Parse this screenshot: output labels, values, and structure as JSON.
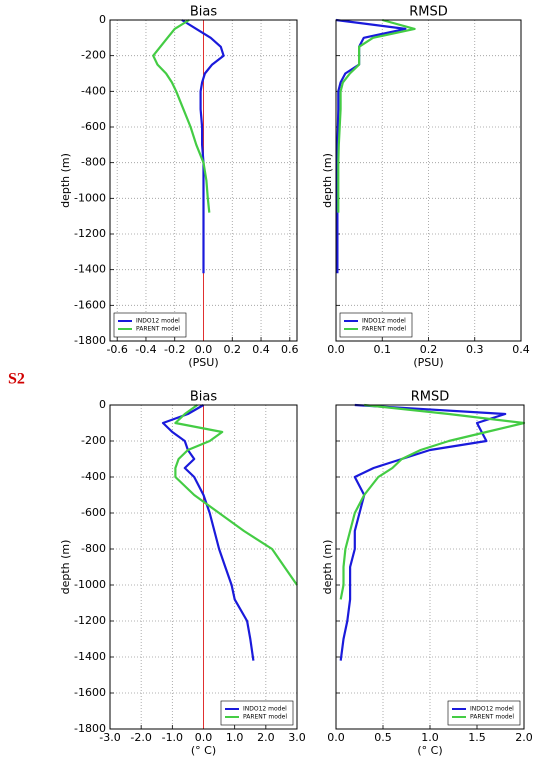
{
  "panel_label": "S2",
  "chart_data": [
    {
      "type": "line",
      "title": "Bias",
      "xlabel": "(PSU)",
      "ylabel": "depth (m)",
      "xlim": [
        -0.65,
        0.65
      ],
      "xticks": [
        -0.6,
        -0.4,
        -0.2,
        {
          "value": 0,
          "label": "0.0"
        },
        0.2,
        0.4,
        0.6
      ],
      "ylim": [
        -1800,
        0
      ],
      "yticks": [
        0,
        -200,
        -400,
        -600,
        -800,
        -1000,
        -1200,
        -1400,
        -1600,
        -1800
      ],
      "grid": true,
      "legend_loc": "lower left",
      "vline": 0,
      "vline_color": "#e03030",
      "y": [
        0,
        -50,
        -100,
        -150,
        -200,
        -250,
        -300,
        -350,
        -400,
        -500,
        -600,
        -700,
        -800,
        -900,
        -1000,
        -1080,
        -1200,
        -1300,
        -1420
      ],
      "series": [
        {
          "name": "INDO12 model",
          "color": "#1a1adb",
          "values": [
            -0.15,
            -0.05,
            0.05,
            0.12,
            0.14,
            0.06,
            0.01,
            -0.01,
            -0.02,
            -0.02,
            -0.01,
            -0.01,
            0.0,
            0.0,
            0.0,
            0.0,
            0.0,
            0.0,
            0.0
          ]
        },
        {
          "name": "PARENT model",
          "color": "#44cc44",
          "values": [
            -0.1,
            -0.2,
            -0.25,
            -0.3,
            -0.35,
            -0.32,
            -0.26,
            -0.22,
            -0.19,
            -0.14,
            -0.09,
            -0.05,
            0.0,
            0.02,
            0.03,
            0.04,
            null,
            null,
            null
          ]
        }
      ]
    },
    {
      "type": "line",
      "title": "RMSD",
      "xlabel": "(PSU)",
      "ylabel": "depth (m)",
      "xlim": [
        0,
        0.4
      ],
      "xticks": [
        {
          "value": 0,
          "label": "0.0"
        },
        0.1,
        0.2,
        0.3,
        0.4
      ],
      "ylim": [
        -1800,
        0
      ],
      "yticks": [
        0,
        -200,
        -400,
        -600,
        -800,
        -1000,
        -1200,
        -1400,
        -1600,
        -1800
      ],
      "grid": true,
      "legend_loc": "lower left",
      "y": [
        0,
        -50,
        -100,
        -150,
        -200,
        -250,
        -300,
        -350,
        -400,
        -500,
        -600,
        -700,
        -800,
        -900,
        -1000,
        -1080,
        -1200,
        -1300,
        -1420
      ],
      "series": [
        {
          "name": "INDO12 model",
          "color": "#1a1adb",
          "values": [
            0.0,
            0.15,
            0.06,
            0.05,
            0.05,
            0.05,
            0.02,
            0.01,
            0.005,
            0.005,
            0.004,
            0.003,
            0.003,
            0.003,
            0.003,
            0.003,
            0.003,
            0.003,
            0.003
          ]
        },
        {
          "name": "PARENT model",
          "color": "#44cc44",
          "values": [
            0.1,
            0.17,
            0.08,
            0.05,
            0.05,
            0.05,
            0.03,
            0.015,
            0.01,
            0.01,
            0.008,
            0.006,
            0.005,
            0.005,
            0.005,
            0.005,
            null,
            null,
            null
          ]
        }
      ]
    },
    {
      "type": "line",
      "title": "Bias",
      "xlabel": "(° C)",
      "ylabel": "depth (m)",
      "xlim": [
        -3,
        3
      ],
      "xticks": [
        {
          "value": -3,
          "label": "-3.0"
        },
        {
          "value": -2,
          "label": "-2.0"
        },
        {
          "value": -1,
          "label": "-1.0"
        },
        {
          "value": 0,
          "label": "0.0"
        },
        {
          "value": 1,
          "label": "1.0"
        },
        {
          "value": 2,
          "label": "2.0"
        },
        {
          "value": 3,
          "label": "3.0"
        }
      ],
      "ylim": [
        -1800,
        0
      ],
      "yticks": [
        0,
        -200,
        -400,
        -600,
        -800,
        -1000,
        -1200,
        -1400,
        -1600,
        -1800
      ],
      "grid": true,
      "legend_loc": "lower right",
      "vline": 0,
      "vline_color": "#e03030",
      "y": [
        0,
        -50,
        -100,
        -150,
        -200,
        -250,
        -300,
        -350,
        -400,
        -500,
        -600,
        -700,
        -800,
        -900,
        -1000,
        -1080,
        -1200,
        -1300,
        -1420
      ],
      "series": [
        {
          "name": "INDO12 model",
          "color": "#1a1adb",
          "values": [
            0.0,
            -0.5,
            -1.3,
            -1.0,
            -0.6,
            -0.5,
            -0.3,
            -0.6,
            -0.3,
            0.0,
            0.2,
            0.35,
            0.5,
            0.7,
            0.9,
            1.0,
            1.4,
            1.5,
            1.6
          ]
        },
        {
          "name": "PARENT model",
          "color": "#44cc44",
          "values": [
            -0.2,
            -0.6,
            -0.9,
            0.6,
            0.2,
            -0.5,
            -0.8,
            -0.9,
            -0.9,
            -0.3,
            0.5,
            1.3,
            2.2,
            2.6,
            3.0,
            null,
            null,
            null,
            null
          ]
        }
      ]
    },
    {
      "type": "line",
      "title": "RMSD",
      "xlabel": "(° C)",
      "ylabel": "depth (m)",
      "xlim": [
        0,
        2
      ],
      "xticks": [
        {
          "value": 0,
          "label": "0.0"
        },
        0.5,
        {
          "value": 1,
          "label": "1.0"
        },
        1.5,
        {
          "value": 2,
          "label": "2.0"
        }
      ],
      "ylim": [
        -1800,
        0
      ],
      "yticks": [
        0,
        -200,
        -400,
        -600,
        -800,
        -1000,
        -1200,
        -1400,
        -1600,
        -1800
      ],
      "grid": true,
      "legend_loc": "lower right",
      "y": [
        0,
        -50,
        -100,
        -150,
        -200,
        -250,
        -300,
        -350,
        -400,
        -500,
        -600,
        -700,
        -800,
        -900,
        -1000,
        -1080,
        -1200,
        -1300,
        -1420
      ],
      "series": [
        {
          "name": "INDO12 model",
          "color": "#1a1adb",
          "values": [
            0.2,
            1.8,
            1.5,
            1.55,
            1.6,
            1.0,
            0.7,
            0.4,
            0.2,
            0.3,
            0.25,
            0.2,
            0.2,
            0.15,
            0.15,
            0.15,
            0.12,
            0.08,
            0.05
          ]
        },
        {
          "name": "PARENT model",
          "color": "#44cc44",
          "values": [
            0.3,
            1.2,
            2.0,
            1.6,
            1.2,
            0.9,
            0.7,
            0.6,
            0.45,
            0.3,
            0.2,
            0.15,
            0.1,
            0.08,
            0.08,
            0.05,
            null,
            null,
            null
          ]
        }
      ]
    }
  ]
}
